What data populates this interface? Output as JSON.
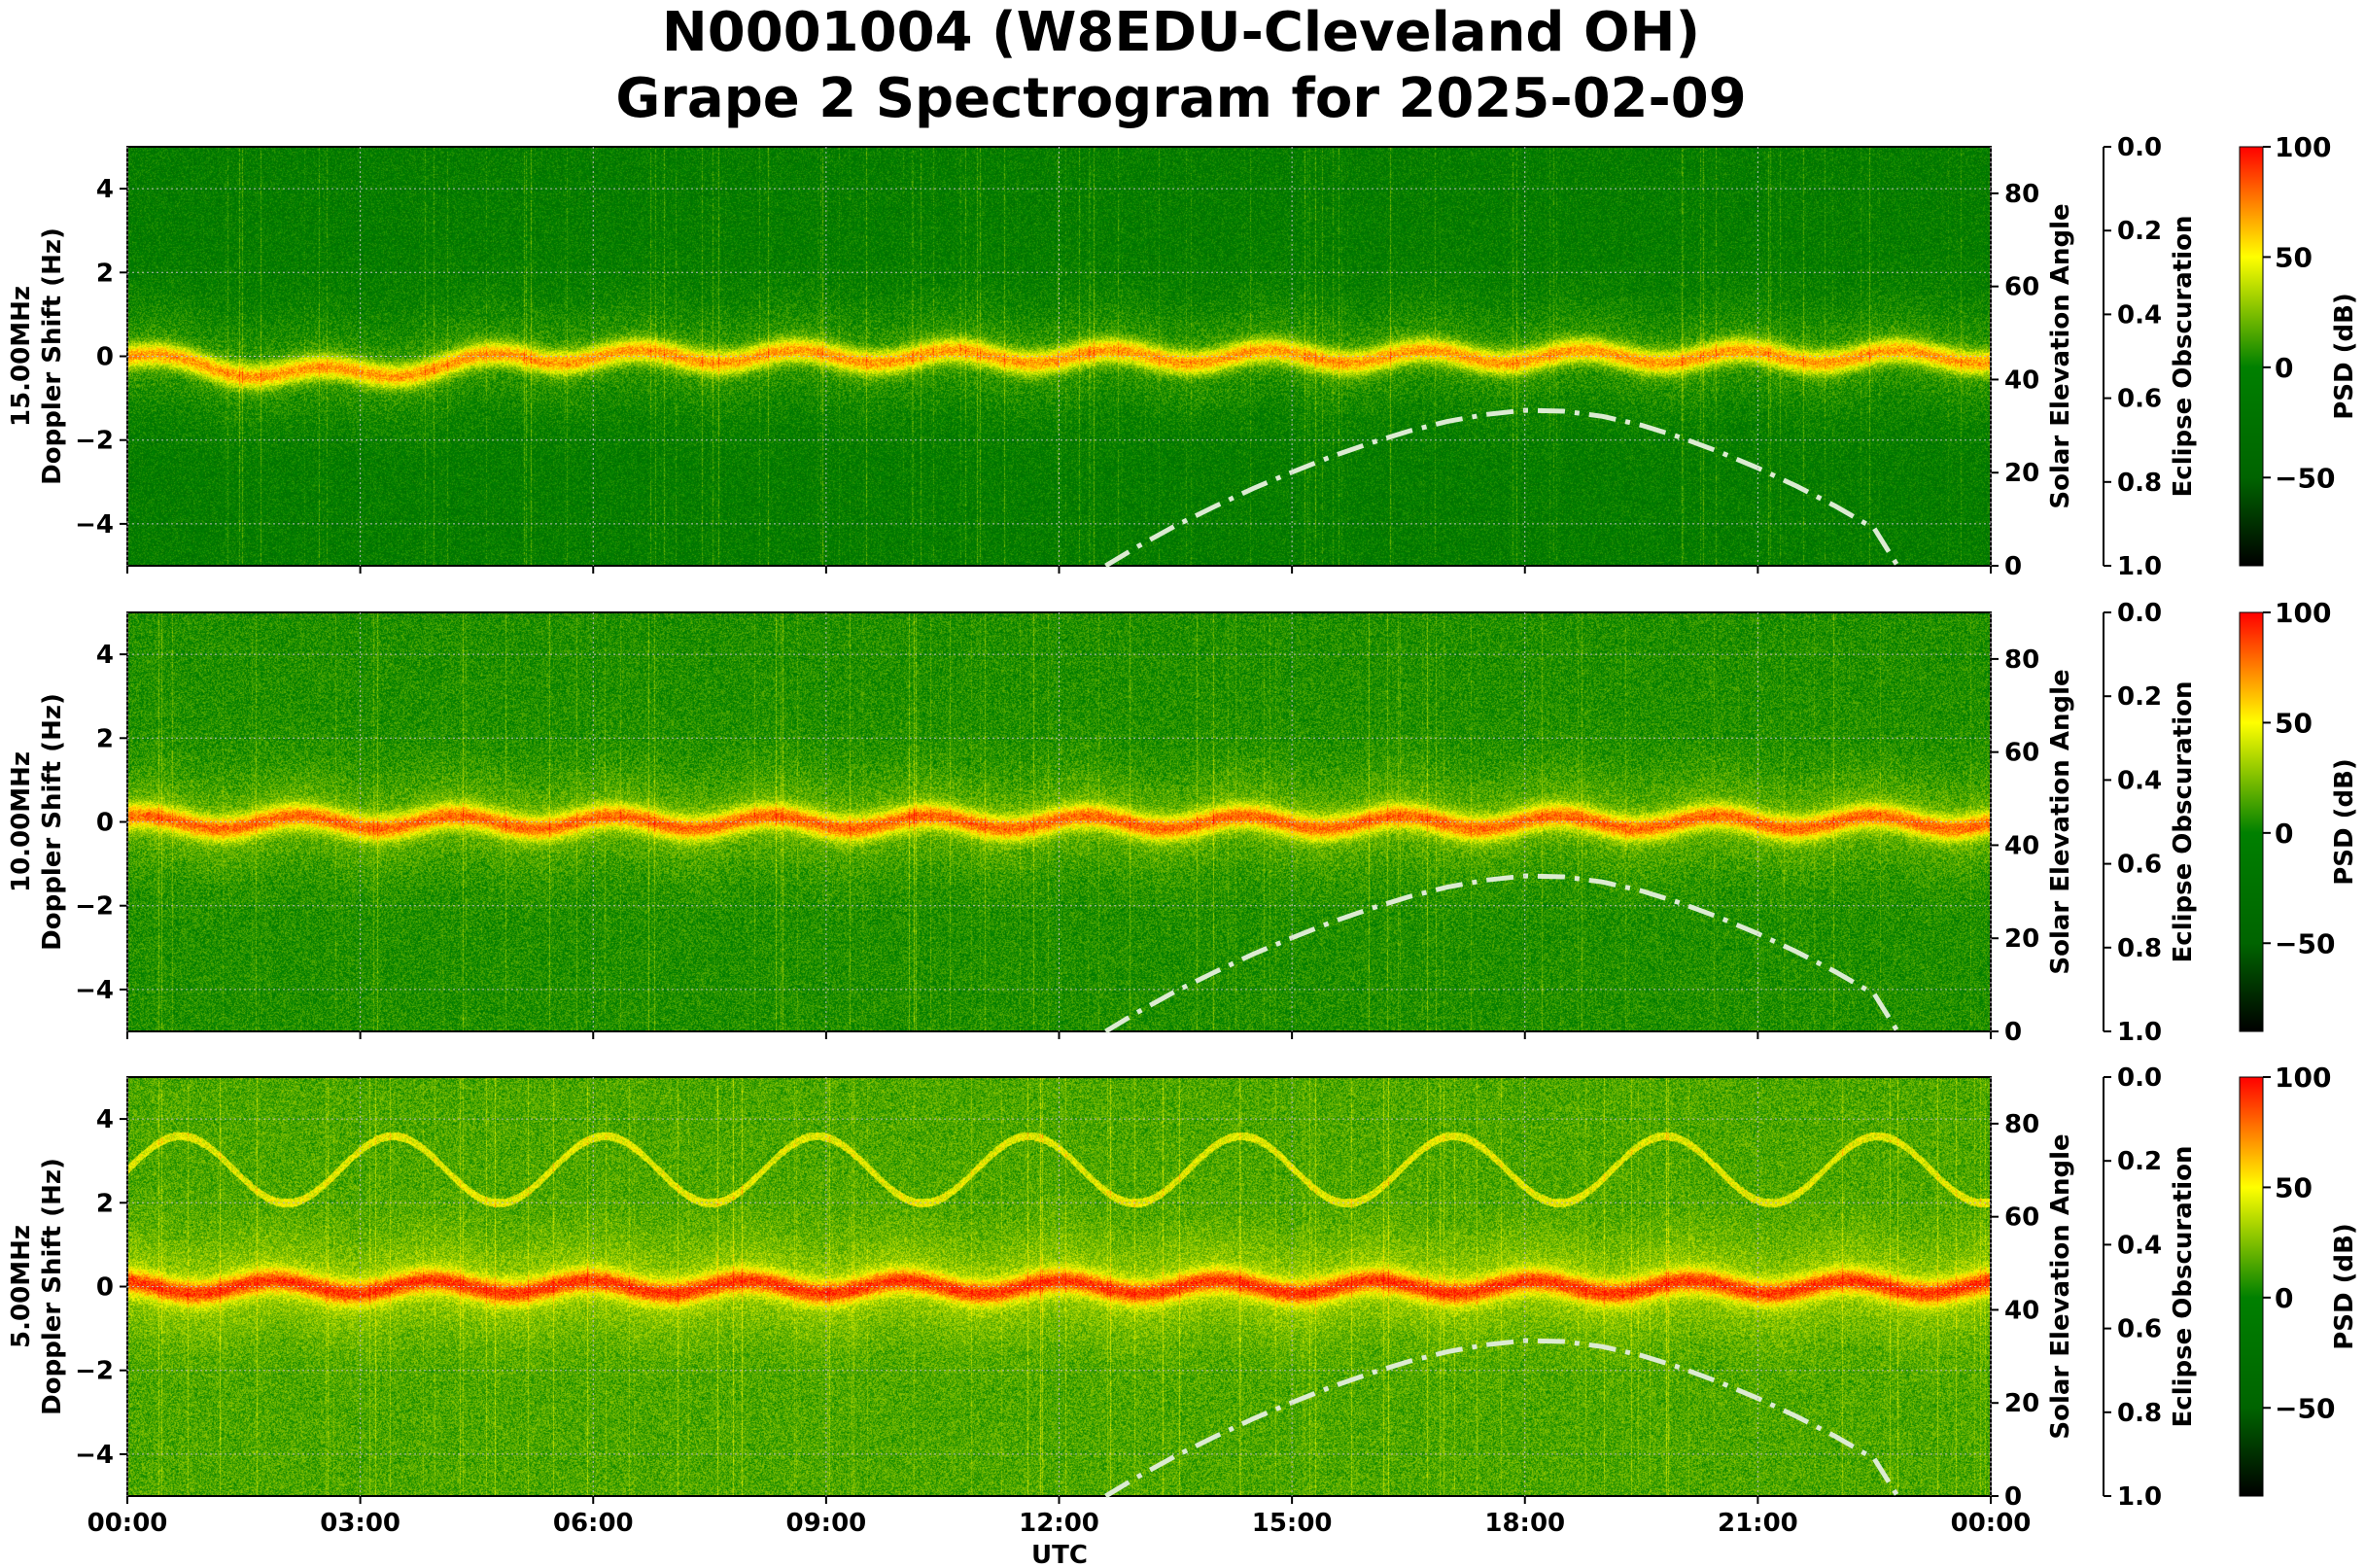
{
  "chart_data": {
    "type": "heatmap",
    "title_line1": "N0001004 (W8EDU-Cleveland OH)",
    "title_line2": "Grape 2 Spectrogram for 2025-02-09",
    "xlabel": "UTC",
    "x_ticks": [
      "00:00",
      "03:00",
      "06:00",
      "09:00",
      "12:00",
      "15:00",
      "18:00",
      "21:00",
      "00:00"
    ],
    "xlim_hours": [
      0,
      24
    ],
    "doppler_ylabel": "Doppler Shift (Hz)",
    "doppler_ylim": [
      -5,
      5
    ],
    "doppler_ticks": [
      4,
      2,
      0,
      -2,
      -4
    ],
    "doppler_tick_labels": [
      "4",
      "2",
      "0",
      "−2",
      "−4"
    ],
    "solar_ylabel": "Solar Elevation Angle",
    "solar_ylim": [
      0,
      90
    ],
    "solar_ticks": [
      "0",
      "20",
      "40",
      "60",
      "80"
    ],
    "eclipse_ylabel": "Eclipse Obscuration",
    "eclipse_ticks": [
      "0.0",
      "0.2",
      "0.4",
      "0.6",
      "0.8",
      "1.0"
    ],
    "colorbar_label": "PSD (dB)",
    "colorbar_range": [
      -90,
      100
    ],
    "colorbar_ticks": [
      "100",
      "50",
      "0",
      "−50"
    ],
    "colormap": [
      "#000000",
      "#006400",
      "#008000",
      "#ffff00",
      "#ff0000"
    ],
    "solar_curve_color": "#dcebd2",
    "panels": [
      {
        "label": "15.00MHz",
        "carrier_offset_hz": 0.0
      },
      {
        "label": "10.00MHz",
        "carrier_offset_hz": 0.0
      },
      {
        "label": "5.00MHz",
        "carrier_offset_hz": 0.0
      }
    ],
    "solar_elevation": {
      "hours": [
        12.6,
        13,
        13.5,
        14,
        14.5,
        15,
        15.5,
        16,
        16.5,
        17,
        17.5,
        18,
        18.5,
        19,
        19.5,
        20,
        20.5,
        21,
        21.5,
        22,
        22.5,
        22.8
      ],
      "degrees": [
        0,
        4,
        8.6,
        12.7,
        16.6,
        20.1,
        23.4,
        26.3,
        28.9,
        31.0,
        32.5,
        33.4,
        33.2,
        32.1,
        30.2,
        27.6,
        24.5,
        21.0,
        17.1,
        12.8,
        8.0,
        0
      ]
    }
  }
}
